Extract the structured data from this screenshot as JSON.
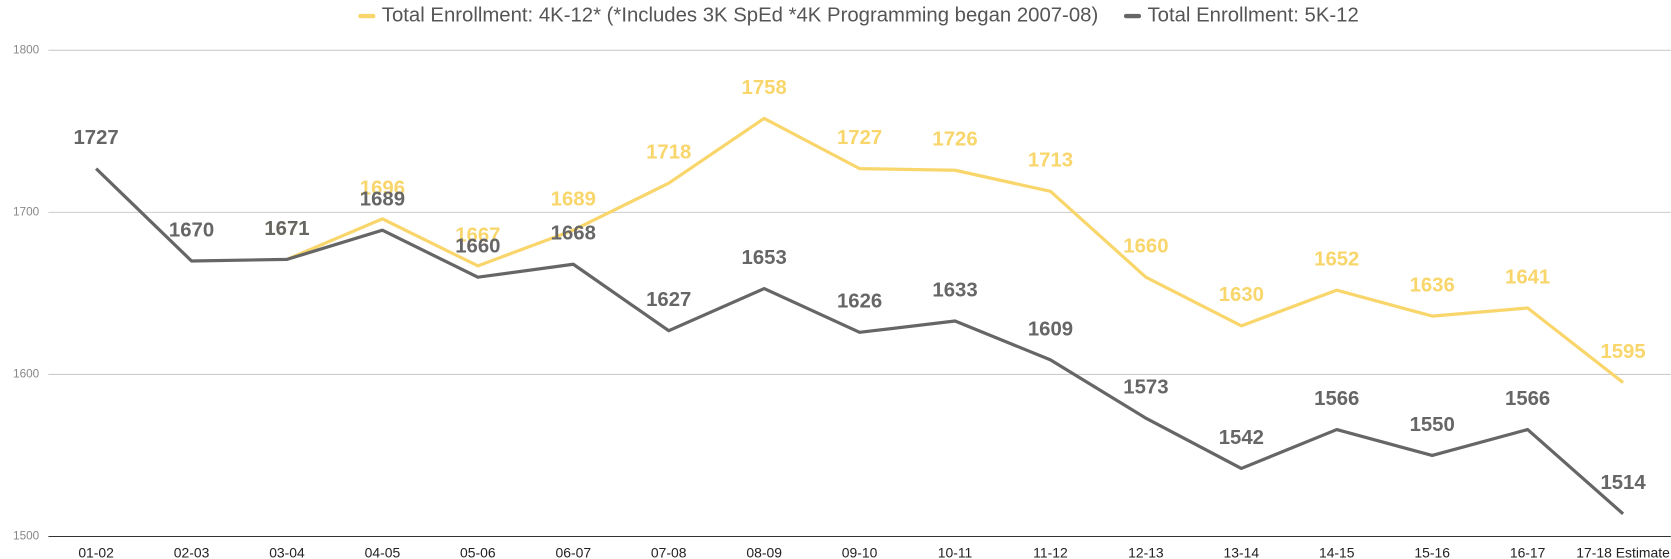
{
  "chart_data": {
    "type": "line",
    "categories": [
      "01-02",
      "02-03",
      "03-04",
      "04-05",
      "05-06",
      "06-07",
      "07-08",
      "08-09",
      "09-10",
      "10-11",
      "11-12",
      "12-13",
      "13-14",
      "14-15",
      "15-16",
      "16-17",
      "17-18 Estimate"
    ],
    "series": [
      {
        "name": "Total Enrollment: 4K-12* (*Includes 3K SpEd *4K Programming began 2007-08)",
        "color": "#f9d66b",
        "values": [
          null,
          null,
          1671,
          1696,
          1667,
          1689,
          1718,
          1758,
          1727,
          1726,
          1713,
          1660,
          1630,
          1652,
          1636,
          1641,
          1595
        ]
      },
      {
        "name": "Total Enrollment: 5K-12",
        "color": "#666666",
        "values": [
          1727,
          1670,
          1671,
          1689,
          1660,
          1668,
          1627,
          1653,
          1626,
          1633,
          1609,
          1573,
          1542,
          1566,
          1550,
          1566,
          1514
        ]
      }
    ],
    "ylim": [
      1500,
      1800
    ],
    "yticks": [
      1500,
      1600,
      1700,
      1800
    ],
    "grid": true,
    "legend": "top"
  }
}
